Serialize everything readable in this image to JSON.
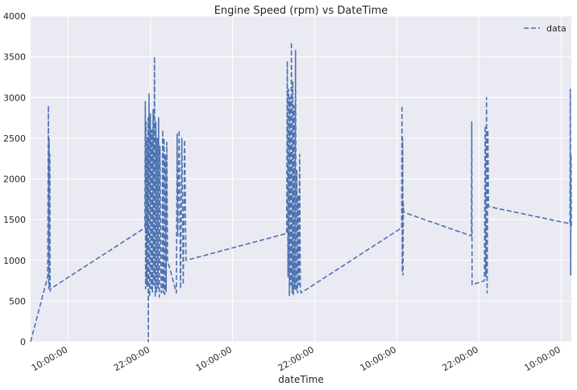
{
  "chart_data": {
    "type": "line",
    "title": "Engine Speed (rpm) vs DateTime",
    "xlabel": "dateTime",
    "ylabel": "",
    "ylim": [
      0,
      4000
    ],
    "y_ticks": [
      0,
      500,
      1000,
      1500,
      2000,
      2500,
      3000,
      3500,
      4000
    ],
    "x_ticks": [
      {
        "x": 5,
        "label": "10:00:00"
      },
      {
        "x": 17,
        "label": "22:00:00"
      },
      {
        "x": 29,
        "label": "10:00:00"
      },
      {
        "x": 41,
        "label": "22:00:00"
      },
      {
        "x": 53,
        "label": "10:00:00"
      },
      {
        "x": 65,
        "label": "22:00:00"
      },
      {
        "x": 77,
        "label": "10:00:00"
      }
    ],
    "x_unit": "hours",
    "xlim": [
      -0.5,
      78.5
    ],
    "grid": true,
    "legend_position": "top-right",
    "line_style": "dashed",
    "series": [
      {
        "name": "data",
        "color": "#4c72b0",
        "x": [
          -0.5,
          2.0,
          2.1,
          2.15,
          2.2,
          2.25,
          2.3,
          2.35,
          2.4,
          16.2,
          16.25,
          16.3,
          16.35,
          16.4,
          16.45,
          16.5,
          16.55,
          16.6,
          16.65,
          16.7,
          16.8,
          16.9,
          17.0,
          17.1,
          17.2,
          17.3,
          17.4,
          17.5,
          17.6,
          17.7,
          17.8,
          17.9,
          18.0,
          18.1,
          18.2,
          18.3,
          18.4,
          18.5,
          18.6,
          18.7,
          18.8,
          18.9,
          19.0,
          19.1,
          19.2,
          19.3,
          19.4,
          19.5,
          20.8,
          20.9,
          21.0,
          21.2,
          21.4,
          21.6,
          21.8,
          22.0,
          22.2,
          36.9,
          37.0,
          37.1,
          37.2,
          37.3,
          37.4,
          37.5,
          37.6,
          37.7,
          37.8,
          37.9,
          38.0,
          38.1,
          38.2,
          38.3,
          38.4,
          38.5,
          38.6,
          38.7,
          38.8,
          38.9,
          39.0,
          53.7,
          53.75,
          53.8,
          53.85,
          53.9,
          53.95,
          54.0,
          63.9,
          63.95,
          64.0,
          65.8,
          65.9,
          66.0,
          66.1,
          66.2,
          66.3,
          66.4,
          78.3,
          78.35,
          78.4,
          78.45,
          78.5
        ],
        "y": [
          0,
          800,
          2900,
          650,
          2500,
          700,
          2300,
          620,
          650,
          1400,
          2950,
          650,
          2700,
          700,
          2300,
          680,
          2500,
          1300,
          2750,
          0,
          3050,
          550,
          2800,
          650,
          2600,
          600,
          2850,
          700,
          3500,
          550,
          2700,
          600,
          2500,
          650,
          2750,
          550,
          2400,
          1000,
          600,
          650,
          2600,
          600,
          2500,
          580,
          2300,
          620,
          2450,
          1000,
          600,
          2550,
          1300,
          2600,
          650,
          2500,
          700,
          2480,
          1000,
          1330,
          3450,
          800,
          3100,
          560,
          3000,
          700,
          3680,
          600,
          3200,
          580,
          2900,
          650,
          3580,
          620,
          2100,
          600,
          1800,
          700,
          2300,
          650,
          600,
          1400,
          2900,
          850,
          2500,
          820,
          1700,
          1590,
          1300,
          2700,
          700,
          750,
          2650,
          800,
          3000,
          600,
          2600,
          1660,
          1450,
          3100,
          820,
          2300,
          1400
        ]
      }
    ]
  }
}
